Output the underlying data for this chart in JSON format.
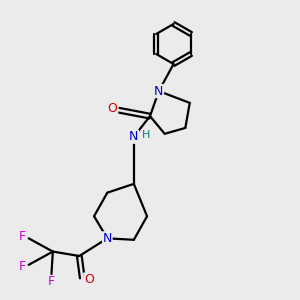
{
  "bg_color": "#ebebeb",
  "bond_color": "#000000",
  "N_color": "#0000cc",
  "O_color": "#cc0000",
  "F_color": "#cc00cc",
  "H_color": "#008080",
  "line_width": 1.6,
  "figsize": [
    3.0,
    3.0
  ],
  "dpi": 100,
  "xlim": [
    0,
    10
  ],
  "ylim": [
    0,
    10
  ]
}
